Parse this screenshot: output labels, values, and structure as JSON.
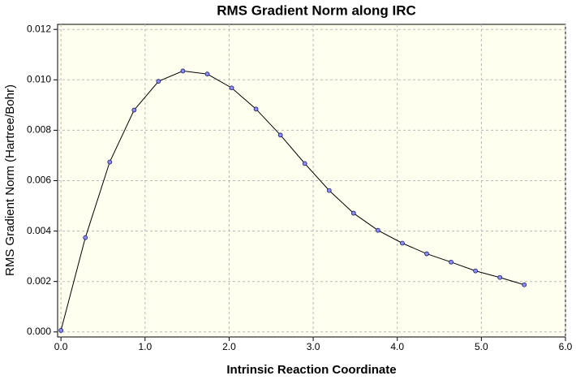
{
  "chart_data": {
    "type": "line",
    "title": "RMS Gradient Norm along IRC",
    "x_label": "Intrinsic Reaction Coordinate",
    "y_label": "RMS Gradient Norm (Hartree/Bohr)",
    "x": [
      0,
      0.29,
      0.58,
      0.87,
      1.16,
      1.45,
      1.74,
      2.03,
      2.32,
      2.61,
      2.9,
      3.19,
      3.48,
      3.77,
      4.06,
      4.35,
      4.64,
      4.93,
      5.22,
      5.51
    ],
    "series": [
      {
        "color": "#000000",
        "marker_color": "#8c8cff",
        "values": [
          6e-05,
          0.00374,
          0.00674,
          0.0088,
          0.00994,
          0.01035,
          0.01023,
          0.00968,
          0.00884,
          0.00781,
          0.00668,
          0.00561,
          0.00471,
          0.00403,
          0.00352,
          0.0031,
          0.00277,
          0.00242,
          0.00216,
          0.00187
        ]
      }
    ],
    "xlim": [
      -0.04,
      6.0
    ],
    "ylim": [
      -0.0002,
      0.0122
    ],
    "xticks": [
      {
        "value": 0,
        "label": "0.0"
      },
      {
        "value": 1,
        "label": "1.0"
      },
      {
        "value": 2,
        "label": "2.0"
      },
      {
        "value": 3,
        "label": "3.0"
      },
      {
        "value": 4,
        "label": "4.0"
      },
      {
        "value": 5,
        "label": "5.0"
      },
      {
        "value": 6,
        "label": "6.0"
      }
    ],
    "yticks": [
      {
        "value": 0,
        "label": "0.000"
      },
      {
        "value": 0.002,
        "label": "0.002"
      },
      {
        "value": 0.004,
        "label": "0.004"
      },
      {
        "value": 0.006,
        "label": "0.006"
      },
      {
        "value": 0.008,
        "label": "0.008"
      },
      {
        "value": 0.01,
        "label": "0.010"
      },
      {
        "value": 0.012,
        "label": "0.012"
      }
    ],
    "grid": true,
    "plot_background": "#ffffef"
  }
}
